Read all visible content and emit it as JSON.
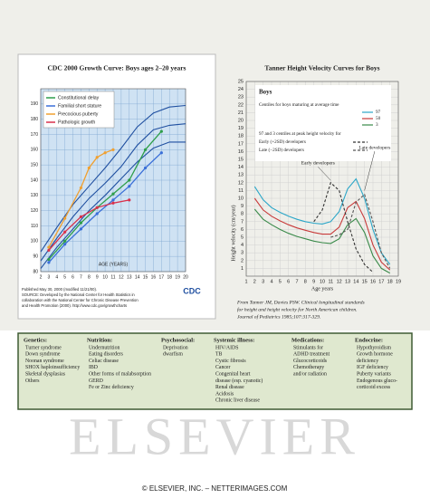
{
  "chart_data": [
    {
      "type": "line",
      "title": "CDC 2000 Growth Curve: Boys ages 2–20 years",
      "x_label": "AGE (YEARS)",
      "xlim": [
        2,
        20
      ],
      "xticks": [
        2,
        3,
        4,
        5,
        6,
        7,
        8,
        9,
        10,
        11,
        12,
        13,
        14,
        15,
        16,
        17,
        18,
        19,
        20
      ],
      "ylim": [
        80,
        200
      ],
      "yticks": [
        80,
        90,
        100,
        110,
        120,
        130,
        140,
        150,
        160,
        170,
        180,
        190
      ],
      "grid": true,
      "legend": "upper left",
      "logo": "CDC",
      "notes": [
        "Published May 30, 2000 (modified 11/21/00).",
        "SOURCE: Developed by the National Center for Health Statistics in",
        "collaboration with the National Center for Chronic Disease Prevention",
        "and Health Promotion (2000). http://www.cdc.gov/growthcharts"
      ],
      "series": [
        {
          "color": "#1f4fa0",
          "x": [
            2,
            4,
            6,
            8,
            10,
            12,
            14,
            16,
            18,
            20
          ],
          "values": [
            82,
            96,
            108,
            120,
            130,
            141,
            152,
            161,
            165,
            165
          ]
        },
        {
          "color": "#1f4fa0",
          "x": [
            2,
            4,
            6,
            8,
            10,
            12,
            14,
            16,
            18,
            20
          ],
          "values": [
            87,
            102,
            116,
            128,
            138,
            149,
            163,
            173,
            176,
            177
          ]
        },
        {
          "color": "#1f4fa0",
          "x": [
            2,
            4,
            6,
            8,
            10,
            12,
            14,
            16,
            18,
            20
          ],
          "values": [
            93,
            109,
            124,
            136,
            148,
            161,
            175,
            184,
            188,
            189
          ]
        },
        {
          "name": "Constitutional delay",
          "color": "#2e9e4a",
          "x": [
            3,
            5,
            7,
            9,
            11,
            13,
            15,
            17
          ],
          "values": [
            88,
            100,
            112,
            122,
            131,
            140,
            160,
            172
          ]
        },
        {
          "name": "Familial short stature",
          "color": "#3a6fd8",
          "x": [
            3,
            5,
            7,
            9,
            11,
            13,
            15,
            17
          ],
          "values": [
            86,
            98,
            108,
            118,
            127,
            136,
            148,
            158
          ]
        },
        {
          "name": "Precocious puberty",
          "color": "#f0a030",
          "x": [
            3,
            5,
            7,
            8,
            9,
            10,
            11
          ],
          "values": [
            96,
            115,
            135,
            148,
            155,
            158,
            160
          ]
        },
        {
          "name": "Pathologic growth",
          "color": "#d9304a",
          "x": [
            3,
            5,
            7,
            9,
            11,
            13
          ],
          "values": [
            94,
            106,
            116,
            122,
            125,
            127
          ]
        }
      ]
    },
    {
      "type": "line",
      "title": "Tanner Height Velocity Curves for Boys",
      "x_label": "Age years",
      "y_label": "Height velocity (cm/year)",
      "xlim": [
        1,
        19
      ],
      "xticks": [
        1,
        2,
        3,
        4,
        5,
        6,
        7,
        8,
        9,
        10,
        11,
        12,
        13,
        14,
        15,
        16,
        17,
        18,
        19
      ],
      "ylim": [
        0,
        25
      ],
      "yticks": [
        1,
        2,
        3,
        4,
        5,
        6,
        7,
        8,
        9,
        10,
        11,
        12,
        13,
        14,
        15,
        16,
        17,
        18,
        19,
        20,
        21,
        22,
        23,
        24,
        25
      ],
      "legend_title": "Boys",
      "legend_heading": "Centiles for boys maturing at average time",
      "legend_subheading": "97 and 3 centiles at peak height velocity for",
      "annotations": [
        "Early developers",
        "Late developers"
      ],
      "caption": [
        "From Tanner JM, Davies PSW. Clinical longitudinal standards",
        "for height and height velocity for North American children.",
        "Journal of Pediatrics 1985;107:317-329."
      ],
      "series": [
        {
          "name": "97",
          "color": "#2aa6c8",
          "x": [
            2,
            3,
            4,
            5,
            6,
            7,
            8,
            9,
            10,
            11,
            12,
            13,
            14,
            15,
            16,
            17,
            18
          ],
          "values": [
            11.5,
            9.8,
            8.8,
            8.2,
            7.7,
            7.3,
            7.0,
            6.8,
            6.7,
            7.0,
            8.3,
            11.2,
            12.5,
            10.0,
            6.0,
            3.0,
            1.5
          ]
        },
        {
          "name": "50",
          "color": "#c83a3a",
          "x": [
            2,
            3,
            4,
            5,
            6,
            7,
            8,
            9,
            10,
            11,
            12,
            13,
            14,
            15,
            16,
            17,
            18
          ],
          "values": [
            10.0,
            8.5,
            7.7,
            7.1,
            6.6,
            6.2,
            5.9,
            5.6,
            5.4,
            5.4,
            6.3,
            8.8,
            9.6,
            7.4,
            4.0,
            1.8,
            0.8
          ]
        },
        {
          "name": "3",
          "color": "#3a8a4a",
          "x": [
            2,
            3,
            4,
            5,
            6,
            7,
            8,
            9,
            10,
            11,
            12,
            13,
            14,
            15,
            16,
            17,
            18
          ],
          "values": [
            8.6,
            7.3,
            6.6,
            6.0,
            5.5,
            5.1,
            4.8,
            4.5,
            4.3,
            4.2,
            4.8,
            6.6,
            7.4,
            5.6,
            2.6,
            1.0,
            0.4
          ]
        },
        {
          "name": "Early (+2SD) developers",
          "color": "#333333",
          "dash": true,
          "x": [
            9,
            10,
            11,
            12,
            13,
            14,
            15,
            16
          ],
          "values": [
            7.0,
            8.5,
            12.0,
            11.0,
            7.0,
            3.5,
            1.5,
            0.5
          ]
        },
        {
          "name": "Late (−2SD) developers",
          "color": "#555555",
          "dash": true,
          "x": [
            11,
            12,
            13,
            14,
            15,
            16,
            17,
            18
          ],
          "values": [
            5.0,
            5.3,
            6.0,
            9.5,
            10.5,
            7.0,
            3.0,
            1.0
          ]
        }
      ]
    }
  ],
  "table": {
    "columns": [
      {
        "header": "Genetics:",
        "items": [
          "Turner syndrome",
          "Down syndrome",
          "Noonan syndrome",
          "SHOX haploinsufficiency",
          "Skeletal dysplasias",
          "Others"
        ]
      },
      {
        "header": "Nutrition:",
        "items": [
          "Undernutrition",
          "Eating disorders",
          "Celiac disease",
          "IBD",
          "Other forms of malabsorption",
          "GERD",
          "Fe or Zinc deficiency"
        ]
      },
      {
        "header": "Psychosocial:",
        "items": [
          "Deprivation",
          "dwarfism"
        ]
      },
      {
        "header": "Systemic illness:",
        "items": [
          "HIV/AIDS",
          "TB",
          "Cystic fibrosis",
          "Cancer",
          "Congenital heart",
          "disease (esp. cyanotic)",
          "Renal disease",
          "Acidosis",
          "Chronic liver disease"
        ]
      },
      {
        "header": "Medications:",
        "items": [
          "Stimulants for",
          "ADHD treatment",
          "Glucocorticoids",
          "Chemotherapy",
          "and/or radiation"
        ]
      },
      {
        "header": "Endocrine:",
        "items": [
          "Hypothyroidism",
          "Growth hormone",
          "deficiency",
          "IGF deficiency",
          "Puberty variants",
          "Endogenous gluco-",
          "corticoid excess"
        ]
      }
    ]
  },
  "watermark": "ELSEVIER",
  "footer": "© ELSEVIER, INC. – NETTERIMAGES.COM"
}
